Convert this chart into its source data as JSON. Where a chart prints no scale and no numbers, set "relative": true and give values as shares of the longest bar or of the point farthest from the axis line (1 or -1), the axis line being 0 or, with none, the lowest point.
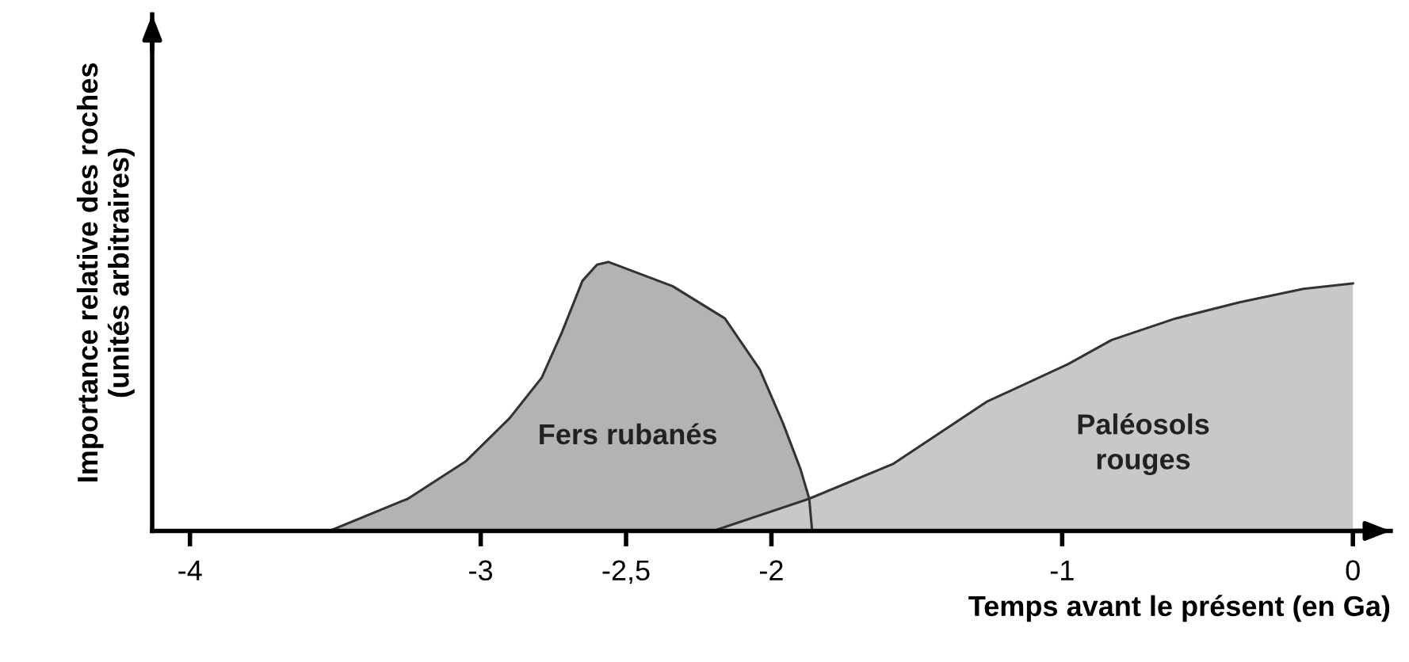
{
  "chart_data": {
    "type": "area",
    "xlabel": "Temps avant le présent (en Ga)",
    "ylabel": "Importance relative des roches\n(unités arbitraires)",
    "relative": true,
    "xlim": [
      -4.13,
      0.13
    ],
    "xticks": [
      -4,
      -3,
      {
        "value": -2.5,
        "label": "-2,5"
      },
      -2,
      -1,
      0
    ],
    "series": [
      {
        "name": "Fers rubanés",
        "color": "#b3b3b3",
        "x": [
          -3.52,
          -3.25,
          -3.05,
          -2.9,
          -2.79,
          -2.72,
          -2.65,
          -2.6,
          -2.56,
          -2.34,
          -2.16,
          -2.04,
          -1.96,
          -1.9,
          -1.87,
          -1.86
        ],
        "values": [
          0,
          0.12,
          0.26,
          0.42,
          0.57,
          0.74,
          0.93,
          0.99,
          1.0,
          0.91,
          0.79,
          0.6,
          0.4,
          0.23,
          0.12,
          0
        ]
      },
      {
        "name": "Paléosols\nrouges",
        "color": "#c8c8c8",
        "x": [
          -2.2,
          -1.87,
          -1.58,
          -1.26,
          -0.98,
          -0.83,
          -0.61,
          -0.39,
          -0.17,
          0
        ],
        "values": [
          0,
          0.12,
          0.25,
          0.48,
          0.62,
          0.71,
          0.79,
          0.85,
          0.9,
          0.92
        ]
      }
    ]
  }
}
